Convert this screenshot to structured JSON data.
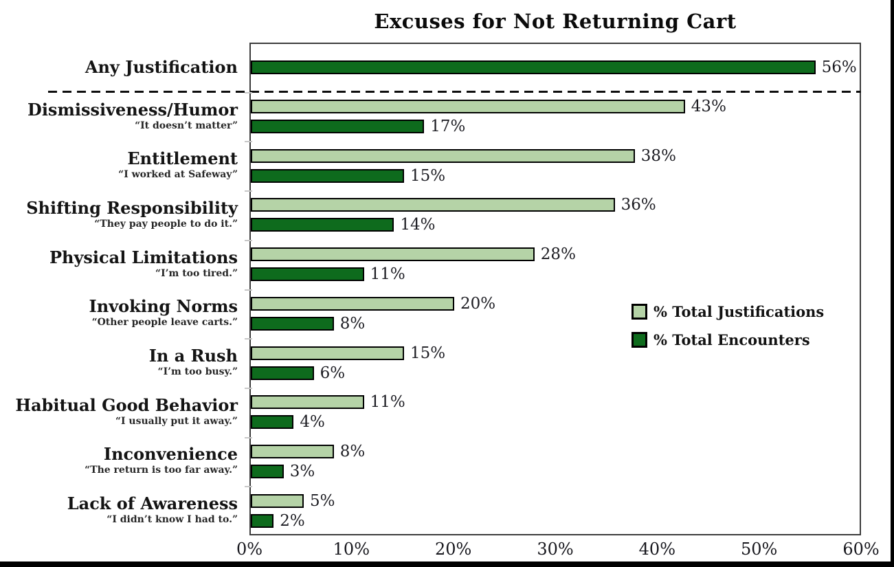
{
  "title": "Excuses for Not Returning Cart",
  "legend": [
    {
      "label": "% Total Justifications",
      "color": "#b5d3a7"
    },
    {
      "label": "% Total Encounters",
      "color": "#0e6b1d"
    }
  ],
  "colors": {
    "light_green": "#b5d3a7",
    "dark_green": "#0e6b1d",
    "bar_border": "#000000",
    "plot_border": "#3b3b3b"
  },
  "chart_data": {
    "type": "bar",
    "orientation": "horizontal",
    "title": "Excuses for Not Returning Cart",
    "xlabel": "",
    "ylabel": "",
    "xlim": [
      0,
      60
    ],
    "x_tick_labels": [
      "0%",
      "10%",
      "20%",
      "30%",
      "40%",
      "50%",
      "60%"
    ],
    "grid": false,
    "legend_position": "middle-right",
    "series": [
      {
        "name": "% Total Justifications",
        "color": "#b5d3a7"
      },
      {
        "name": "% Total Encounters",
        "color": "#0e6b1d"
      }
    ],
    "separator_after_first_category": true,
    "categories": [
      {
        "label": "Any Justification",
        "quote": "",
        "justifications": null,
        "encounters": 56
      },
      {
        "label": "Dismissiveness/Humor",
        "quote": "“It doesn’t matter”",
        "justifications": 43,
        "encounters": 17
      },
      {
        "label": "Entitlement",
        "quote": "“I worked at Safeway”",
        "justifications": 38,
        "encounters": 15
      },
      {
        "label": "Shifting Responsibility",
        "quote": "“They pay people to do it.”",
        "justifications": 36,
        "encounters": 14
      },
      {
        "label": "Physical Limitations",
        "quote": "“I’m too tired.”",
        "justifications": 28,
        "encounters": 11
      },
      {
        "label": "Invoking Norms",
        "quote": "“Other people leave carts.”",
        "justifications": 20,
        "encounters": 8
      },
      {
        "label": "In a Rush",
        "quote": "“I’m too busy.”",
        "justifications": 15,
        "encounters": 6
      },
      {
        "label": "Habitual Good Behavior",
        "quote": "“I usually put it away.”",
        "justifications": 11,
        "encounters": 4
      },
      {
        "label": "Inconvenience",
        "quote": "“The return is too far away.”",
        "justifications": 8,
        "encounters": 3
      },
      {
        "label": "Lack of Awareness",
        "quote": "“I didn’t know I had to.”",
        "justifications": 5,
        "encounters": 2
      }
    ],
    "value_label_suffix": "%"
  }
}
